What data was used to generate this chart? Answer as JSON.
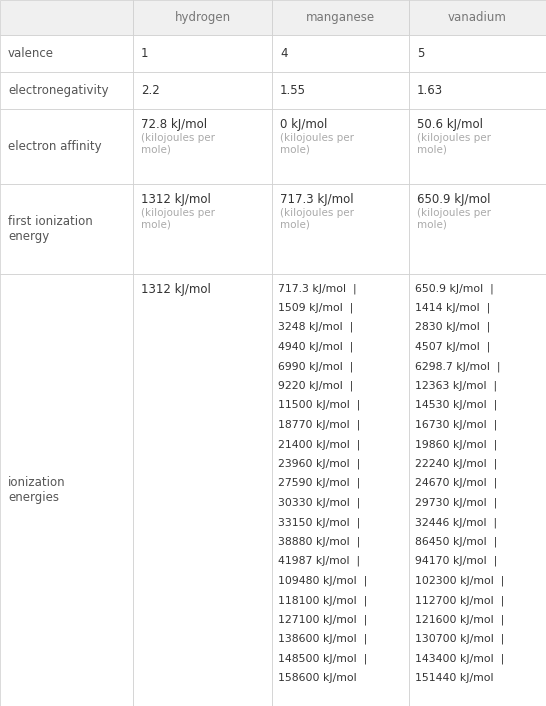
{
  "col_headers": [
    "hydrogen",
    "manganese",
    "vanadium"
  ],
  "row_labels": [
    "valence",
    "electronegativity",
    "electron affinity",
    "first ionization\nenergy",
    "ionization\nenergies"
  ],
  "row_data_simple": [
    [
      "1",
      "4",
      "5"
    ],
    [
      "2.2",
      "1.55",
      "1.63"
    ]
  ],
  "electron_affinity": {
    "hydrogen": [
      "72.8 kJ/mol",
      "(kilojoules per\nmole)"
    ],
    "manganese": [
      "0 kJ/mol",
      "(kilojoules per\nmole)"
    ],
    "vanadium": [
      "50.6 kJ/mol",
      "(kilojoules per\nmole)"
    ]
  },
  "first_ionization": {
    "hydrogen": [
      "1312 kJ/mol",
      "(kilojoules per\nmole)"
    ],
    "manganese": [
      "717.3 kJ/mol",
      "(kilojoules per\nmole)"
    ],
    "vanadium": [
      "650.9 kJ/mol",
      "(kilojoules per\nmole)"
    ]
  },
  "ionization_energies": {
    "hydrogen": [
      "1312 kJ/mol"
    ],
    "manganese": [
      "717.3 kJ/mol",
      "1509 kJ/mol",
      "3248 kJ/mol",
      "4940 kJ/mol",
      "6990 kJ/mol",
      "9220 kJ/mol",
      "11500 kJ/mol",
      "18770 kJ/mol",
      "21400 kJ/mol",
      "23960 kJ/mol",
      "27590 kJ/mol",
      "30330 kJ/mol",
      "33150 kJ/mol",
      "38880 kJ/mol",
      "41987 kJ/mol",
      "109480 kJ/mol",
      "118100 kJ/mol",
      "127100 kJ/mol",
      "138600 kJ/mol",
      "148500 kJ/mol",
      "158600 kJ/mol"
    ],
    "vanadium": [
      "650.9 kJ/mol",
      "1414 kJ/mol",
      "2830 kJ/mol",
      "4507 kJ/mol",
      "6298.7 kJ/mol",
      "12363 kJ/mol",
      "14530 kJ/mol",
      "16730 kJ/mol",
      "19860 kJ/mol",
      "22240 kJ/mol",
      "24670 kJ/mol",
      "29730 kJ/mol",
      "32446 kJ/mol",
      "86450 kJ/mol",
      "94170 kJ/mol",
      "102300 kJ/mol",
      "112700 kJ/mol",
      "121600 kJ/mol",
      "130700 kJ/mol",
      "143400 kJ/mol",
      "151440 kJ/mol"
    ]
  },
  "border_color": "#cccccc",
  "header_bg": "#f0f0f0",
  "header_text_color": "#777777",
  "label_text_color": "#555555",
  "value_text_color": "#333333",
  "sub_text_color": "#aaaaaa"
}
